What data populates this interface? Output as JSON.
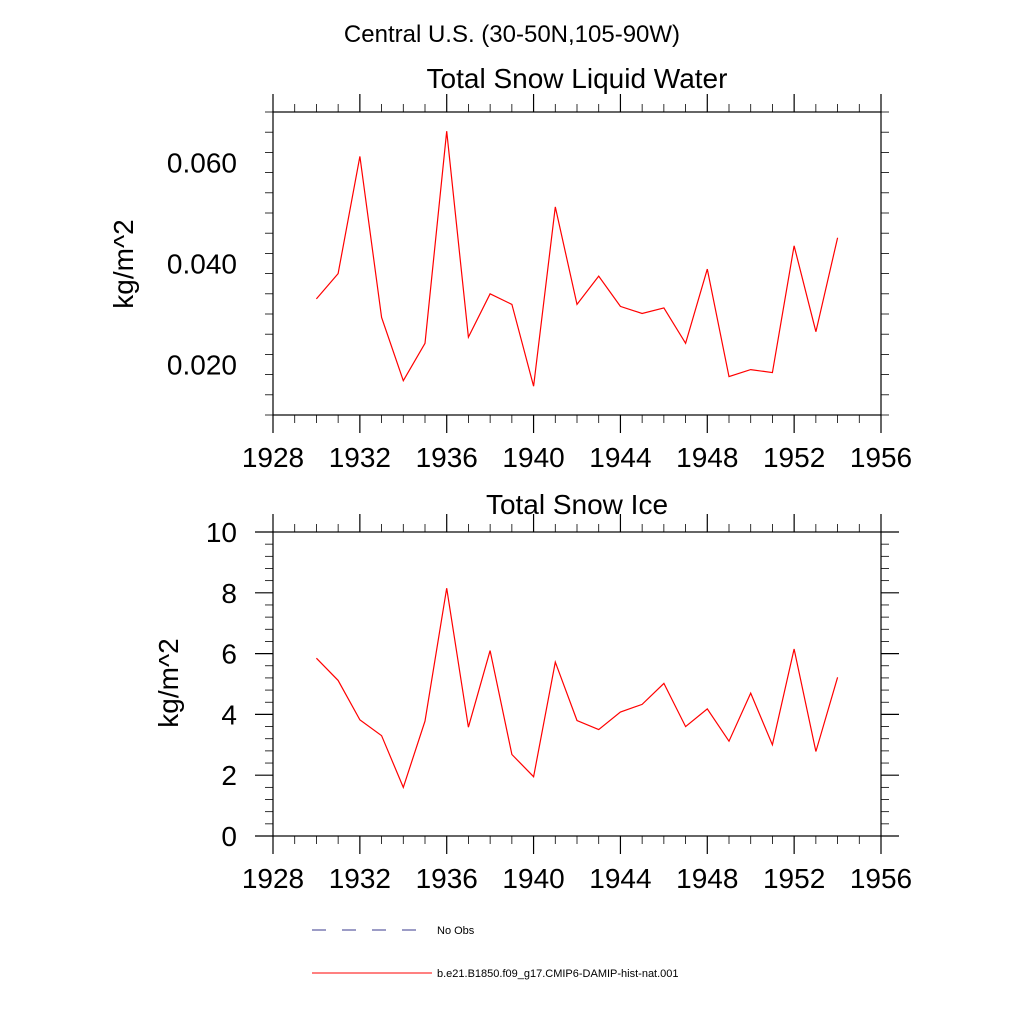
{
  "figure_title": "Central U.S. (30-50N,105-90W)",
  "colors": {
    "series": "#ff0000",
    "no_obs": "#3a3a8c",
    "axis": "#000000"
  },
  "legend": [
    {
      "label": "No Obs",
      "style": "dashed"
    },
    {
      "label": "b.e21.B1850.f09_g17.CMIP6-DAMIP-hist-nat.001",
      "style": "solid"
    }
  ],
  "chart_data": [
    {
      "type": "line",
      "title": "Total Snow Liquid Water",
      "xlabel": "",
      "ylabel": "kg/m^2",
      "xlim": [
        1928,
        1956
      ],
      "ylim": [
        0.01,
        0.07
      ],
      "xticks": [
        1928,
        1932,
        1936,
        1940,
        1944,
        1948,
        1952,
        1956
      ],
      "yticks": [
        0.02,
        0.04,
        0.06
      ],
      "ytick_labels": [
        "0.020",
        "0.040",
        "0.060"
      ],
      "x": [
        1930,
        1931,
        1932,
        1933,
        1934,
        1935,
        1936,
        1937,
        1938,
        1939,
        1940,
        1941,
        1942,
        1943,
        1944,
        1945,
        1946,
        1947,
        1948,
        1949,
        1950,
        1951,
        1952,
        1953,
        1954
      ],
      "series": [
        {
          "values": [
            0.033,
            0.038,
            0.0612,
            0.0293,
            0.0168,
            0.0242,
            0.0662,
            0.0254,
            0.034,
            0.0319,
            0.0157,
            0.0512,
            0.0319,
            0.0375,
            0.0315,
            0.0301,
            0.0312,
            0.0242,
            0.0389,
            0.0176,
            0.019,
            0.0184,
            0.0435,
            0.0265,
            0.0451
          ]
        }
      ]
    },
    {
      "type": "line",
      "title": "Total Snow Ice",
      "xlabel": "",
      "ylabel": "kg/m^2",
      "xlim": [
        1928,
        1956
      ],
      "ylim": [
        0,
        10
      ],
      "xticks": [
        1928,
        1932,
        1936,
        1940,
        1944,
        1948,
        1952,
        1956
      ],
      "yticks": [
        0,
        2,
        4,
        6,
        8,
        10
      ],
      "ytick_labels": [
        "0",
        "2",
        "4",
        "6",
        "8",
        "10"
      ],
      "x": [
        1930,
        1931,
        1932,
        1933,
        1934,
        1935,
        1936,
        1937,
        1938,
        1939,
        1940,
        1941,
        1942,
        1943,
        1944,
        1945,
        1946,
        1947,
        1948,
        1949,
        1950,
        1951,
        1952,
        1953,
        1954
      ],
      "series": [
        {
          "values": [
            5.85,
            5.12,
            3.82,
            3.3,
            1.6,
            3.78,
            8.15,
            3.58,
            6.1,
            2.68,
            1.95,
            5.72,
            3.8,
            3.5,
            4.08,
            4.33,
            5.02,
            3.6,
            4.18,
            3.12,
            4.7,
            3.0,
            6.15,
            2.78,
            5.22
          ]
        }
      ]
    }
  ]
}
